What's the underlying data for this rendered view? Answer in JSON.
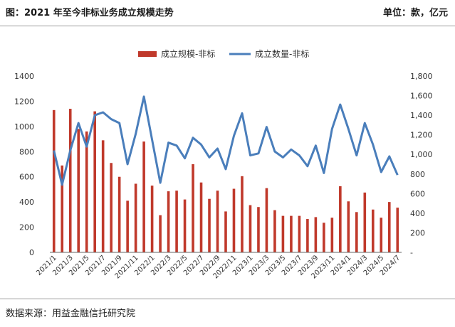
{
  "header": {
    "title": "图：2021 年至今非标业务成立规模走势",
    "unit": "单位：款，亿元"
  },
  "footer": {
    "source": "数据来源：用益金融信托研究院"
  },
  "chart_data": {
    "type": "bar+line",
    "categories": [
      "2021/1",
      "2021/2",
      "2021/3",
      "2021/4",
      "2021/5",
      "2021/6",
      "2021/7",
      "2021/8",
      "2021/9",
      "2021/10",
      "2021/11",
      "2021/12",
      "2022/1",
      "2022/2",
      "2022/3",
      "2022/4",
      "2022/5",
      "2022/6",
      "2022/7",
      "2022/8",
      "2022/9",
      "2022/10",
      "2022/11",
      "2022/12",
      "2023/1",
      "2023/2",
      "2023/3",
      "2023/4",
      "2023/5",
      "2023/6",
      "2023/7",
      "2023/8",
      "2023/9",
      "2023/10",
      "2023/11",
      "2023/12",
      "2024/1",
      "2024/2",
      "2024/3",
      "2024/4",
      "2024/5",
      "2024/6",
      "2024/7"
    ],
    "x_tick_labels": [
      "2021/1",
      "2021/3",
      "2021/5",
      "2021/7",
      "2021/9",
      "2021/11",
      "2022/1",
      "2022/3",
      "2022/5",
      "2022/7",
      "2022/9",
      "2022/11",
      "2023/1",
      "2023/3",
      "2023/5",
      "2023/7",
      "2023/9",
      "2023/11",
      "2024/1",
      "2024/3",
      "2024/5",
      "2024/7"
    ],
    "series": [
      {
        "name": "成立规模-非标",
        "type": "bar",
        "axis": "left",
        "color": "#c0392b",
        "values": [
          1130,
          690,
          1140,
          980,
          960,
          1120,
          890,
          710,
          600,
          410,
          545,
          880,
          530,
          295,
          485,
          490,
          420,
          700,
          555,
          425,
          490,
          325,
          505,
          605,
          375,
          360,
          510,
          335,
          290,
          290,
          290,
          265,
          280,
          235,
          275,
          525,
          405,
          320,
          475,
          340,
          275,
          400,
          355
        ]
      },
      {
        "name": "成立数量-非标",
        "type": "line",
        "axis": "right",
        "color": "#4a7ebb",
        "values": [
          1040,
          690,
          1040,
          1320,
          1080,
          1400,
          1430,
          1360,
          1320,
          900,
          1210,
          1590,
          1150,
          710,
          1120,
          1090,
          960,
          1170,
          1100,
          970,
          1060,
          850,
          1190,
          1420,
          990,
          1010,
          1280,
          1030,
          970,
          1050,
          990,
          880,
          1090,
          810,
          1260,
          1510,
          1260,
          990,
          1320,
          1100,
          820,
          980,
          790
        ]
      }
    ],
    "y_left": {
      "min": 0,
      "max": 1400,
      "ticks": [
        "0",
        "200",
        "400",
        "600",
        "800",
        "1000",
        "1200",
        "1400"
      ]
    },
    "y_right": {
      "min": 0,
      "max": 1800,
      "ticks": [
        "-",
        "200",
        "400",
        "600",
        "800",
        "1,000",
        "1,200",
        "1,400",
        "1,600",
        "1,800"
      ]
    },
    "grid": false,
    "legend_position": "top-center"
  }
}
